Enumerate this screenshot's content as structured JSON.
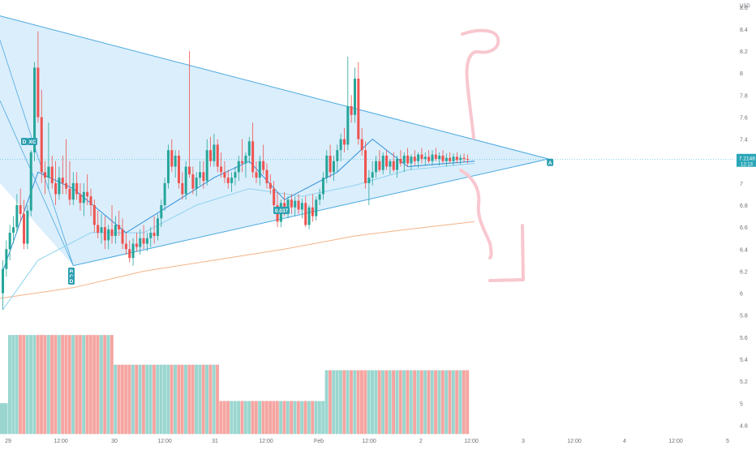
{
  "chart_data": {
    "type": "candlestick",
    "currency": "USD",
    "y_ticks": [
      "8.6",
      "8.4",
      "8.2",
      "8",
      "7.8",
      "7.6",
      "7.4",
      "7.2",
      "7",
      "6.8",
      "6.6",
      "6.4",
      "6.2",
      "6",
      "5.8",
      "5.6",
      "5.4",
      "5.2",
      "5",
      "4.8"
    ],
    "y_tick_values": [
      8.6,
      8.4,
      8.2,
      8.0,
      7.8,
      7.6,
      7.4,
      7.2,
      7.0,
      6.8,
      6.6,
      6.4,
      6.2,
      6.0,
      5.8,
      5.6,
      5.4,
      5.2,
      5.0,
      4.8
    ],
    "ylim": [
      4.7,
      8.65
    ],
    "x_ticks": [
      "29",
      "12:00",
      "30",
      "12:00",
      "31",
      "12:00",
      "Feb",
      "12:00",
      "2",
      "12:00",
      "3",
      "12:00",
      "4",
      "12:00",
      "5"
    ],
    "current_price": {
      "value": 7.2148,
      "label": "7.2148",
      "countdown": "12:13"
    },
    "volume_bands": [
      {
        "from_bar": 0,
        "to_bar": 1,
        "level": 5.0
      },
      {
        "from_bar": 2,
        "to_bar": 31,
        "level": 5.62
      },
      {
        "from_bar": 32,
        "to_bar": 61,
        "level": 5.35
      },
      {
        "from_bar": 62,
        "to_bar": 91,
        "level": 5.02
      },
      {
        "from_bar": 92,
        "to_bar": 134,
        "level": 5.3
      }
    ],
    "volume_base": 4.72,
    "candles": [
      [
        6.0,
        6.3,
        5.85,
        6.22
      ],
      [
        6.22,
        6.48,
        6.15,
        6.4
      ],
      [
        6.4,
        6.62,
        6.3,
        6.55
      ],
      [
        6.55,
        6.7,
        6.45,
        6.6
      ],
      [
        6.6,
        6.9,
        6.55,
        6.8
      ],
      [
        6.8,
        6.95,
        6.65,
        6.72
      ],
      [
        6.72,
        6.85,
        6.4,
        6.45
      ],
      [
        6.45,
        6.8,
        6.4,
        6.75
      ],
      [
        6.75,
        7.3,
        6.7,
        7.28
      ],
      [
        7.28,
        8.1,
        7.2,
        8.05
      ],
      [
        8.05,
        8.38,
        7.55,
        7.6
      ],
      [
        7.6,
        7.85,
        7.0,
        7.1
      ],
      [
        7.1,
        7.2,
        6.9,
        7.05
      ],
      [
        7.05,
        7.55,
        6.95,
        7.15
      ],
      [
        7.15,
        7.25,
        6.95,
        7.0
      ],
      [
        7.0,
        7.2,
        6.8,
        6.9
      ],
      [
        6.9,
        7.15,
        6.85,
        7.05
      ],
      [
        7.05,
        7.25,
        6.9,
        7.0
      ],
      [
        7.0,
        7.4,
        6.9,
        6.95
      ],
      [
        6.95,
        7.2,
        6.8,
        6.85
      ],
      [
        6.85,
        7.1,
        6.8,
        7.0
      ],
      [
        7.0,
        7.1,
        6.85,
        6.9
      ],
      [
        6.9,
        7.0,
        6.75,
        6.82
      ],
      [
        6.82,
        7.0,
        6.7,
        6.92
      ],
      [
        6.92,
        7.08,
        6.8,
        6.88
      ],
      [
        6.88,
        6.95,
        6.7,
        6.8
      ],
      [
        6.8,
        6.85,
        6.55,
        6.62
      ],
      [
        6.62,
        6.75,
        6.5,
        6.55
      ],
      [
        6.55,
        6.72,
        6.45,
        6.6
      ],
      [
        6.6,
        6.7,
        6.4,
        6.48
      ],
      [
        6.48,
        6.62,
        6.4,
        6.58
      ],
      [
        6.58,
        6.8,
        6.45,
        6.52
      ],
      [
        6.52,
        6.7,
        6.45,
        6.62
      ],
      [
        6.62,
        6.75,
        6.52,
        6.58
      ],
      [
        6.58,
        6.68,
        6.4,
        6.45
      ],
      [
        6.45,
        6.55,
        6.35,
        6.4
      ],
      [
        6.4,
        6.48,
        6.28,
        6.32
      ],
      [
        6.32,
        6.5,
        6.25,
        6.45
      ],
      [
        6.45,
        6.55,
        6.38,
        6.42
      ],
      [
        6.42,
        6.58,
        6.35,
        6.5
      ],
      [
        6.5,
        6.62,
        6.4,
        6.45
      ],
      [
        6.45,
        6.55,
        6.38,
        6.5
      ],
      [
        6.5,
        6.6,
        6.42,
        6.55
      ],
      [
        6.55,
        6.7,
        6.45,
        6.52
      ],
      [
        6.52,
        6.72,
        6.48,
        6.68
      ],
      [
        6.68,
        6.85,
        6.6,
        6.8
      ],
      [
        6.8,
        7.05,
        6.75,
        7.0
      ],
      [
        7.0,
        7.35,
        6.95,
        7.3
      ],
      [
        7.3,
        7.4,
        7.1,
        7.15
      ],
      [
        7.15,
        7.3,
        7.05,
        7.25
      ],
      [
        7.25,
        7.3,
        6.95,
        7.0
      ],
      [
        7.0,
        7.1,
        6.85,
        6.9
      ],
      [
        6.9,
        7.2,
        6.85,
        7.15
      ],
      [
        7.15,
        8.2,
        7.05,
        7.08
      ],
      [
        7.08,
        7.15,
        6.9,
        6.95
      ],
      [
        6.95,
        7.1,
        6.88,
        7.05
      ],
      [
        7.05,
        7.2,
        6.98,
        7.1
      ],
      [
        7.1,
        7.2,
        6.95,
        7.02
      ],
      [
        7.02,
        7.4,
        6.98,
        7.3
      ],
      [
        7.3,
        7.42,
        7.15,
        7.2
      ],
      [
        7.2,
        7.45,
        7.15,
        7.35
      ],
      [
        7.35,
        7.4,
        7.1,
        7.15
      ],
      [
        7.15,
        7.28,
        7.05,
        7.1
      ],
      [
        7.1,
        7.2,
        7.0,
        7.05
      ],
      [
        7.05,
        7.12,
        6.95,
        7.0
      ],
      [
        7.0,
        7.1,
        6.92,
        7.05
      ],
      [
        7.05,
        7.15,
        6.98,
        7.1
      ],
      [
        7.1,
        7.25,
        7.02,
        7.2
      ],
      [
        7.2,
        7.4,
        7.1,
        7.18
      ],
      [
        7.18,
        7.28,
        7.05,
        7.25
      ],
      [
        7.25,
        7.42,
        7.18,
        7.38
      ],
      [
        7.38,
        7.55,
        7.05,
        7.1
      ],
      [
        7.1,
        7.2,
        7.0,
        7.05
      ],
      [
        7.05,
        7.25,
        6.98,
        7.2
      ],
      [
        7.2,
        7.35,
        7.08,
        7.12
      ],
      [
        7.12,
        7.18,
        6.95,
        7.0
      ],
      [
        7.0,
        7.08,
        6.9,
        6.95
      ],
      [
        6.95,
        7.02,
        6.75,
        6.8
      ],
      [
        6.8,
        6.92,
        6.6,
        6.65
      ],
      [
        6.65,
        6.85,
        6.6,
        6.82
      ],
      [
        6.82,
        6.92,
        6.7,
        6.75
      ],
      [
        6.75,
        6.88,
        6.68,
        6.85
      ],
      [
        6.85,
        6.9,
        6.72,
        6.78
      ],
      [
        6.78,
        6.88,
        6.7,
        6.84
      ],
      [
        6.84,
        6.9,
        6.72,
        6.76
      ],
      [
        6.76,
        6.86,
        6.68,
        6.82
      ],
      [
        6.82,
        6.88,
        6.6,
        6.62
      ],
      [
        6.62,
        6.8,
        6.58,
        6.78
      ],
      [
        6.78,
        6.9,
        6.65,
        6.7
      ],
      [
        6.7,
        6.88,
        6.66,
        6.85
      ],
      [
        6.85,
        6.95,
        6.8,
        6.9
      ],
      [
        6.9,
        7.1,
        6.85,
        7.05
      ],
      [
        7.05,
        7.3,
        7.0,
        7.25
      ],
      [
        7.25,
        7.35,
        7.05,
        7.1
      ],
      [
        7.1,
        7.25,
        7.02,
        7.2
      ],
      [
        7.2,
        7.35,
        7.1,
        7.3
      ],
      [
        7.3,
        7.45,
        7.2,
        7.4
      ],
      [
        7.4,
        7.5,
        7.28,
        7.35
      ],
      [
        7.35,
        8.15,
        7.3,
        7.7
      ],
      [
        7.7,
        7.8,
        7.55,
        7.62
      ],
      [
        7.62,
        8.05,
        7.55,
        7.95
      ],
      [
        7.95,
        8.1,
        7.35,
        7.4
      ],
      [
        7.4,
        7.5,
        7.25,
        7.3
      ],
      [
        7.3,
        7.38,
        6.95,
        7.0
      ],
      [
        7.0,
        7.12,
        6.8,
        7.05
      ],
      [
        7.05,
        7.2,
        6.98,
        7.1
      ],
      [
        7.1,
        7.25,
        7.05,
        7.2
      ],
      [
        7.2,
        7.3,
        7.1,
        7.12
      ],
      [
        7.12,
        7.28,
        7.08,
        7.25
      ],
      [
        7.25,
        7.3,
        7.12,
        7.15
      ],
      [
        7.15,
        7.22,
        7.08,
        7.2
      ],
      [
        7.2,
        7.28,
        7.1,
        7.12
      ],
      [
        7.12,
        7.25,
        7.05,
        7.22
      ],
      [
        7.22,
        7.3,
        7.15,
        7.18
      ],
      [
        7.18,
        7.28,
        7.1,
        7.25
      ],
      [
        7.25,
        7.32,
        7.15,
        7.18
      ],
      [
        7.18,
        7.26,
        7.12,
        7.24
      ],
      [
        7.24,
        7.3,
        7.16,
        7.2
      ],
      [
        7.2,
        7.28,
        7.14,
        7.26
      ],
      [
        7.26,
        7.32,
        7.18,
        7.22
      ],
      [
        7.22,
        7.28,
        7.16,
        7.24
      ],
      [
        7.24,
        7.3,
        7.18,
        7.2
      ],
      [
        7.2,
        7.3,
        7.16,
        7.26
      ],
      [
        7.26,
        7.32,
        7.2,
        7.22
      ],
      [
        7.22,
        7.28,
        7.16,
        7.25
      ],
      [
        7.25,
        7.3,
        7.18,
        7.2
      ],
      [
        7.2,
        7.27,
        7.15,
        7.23
      ],
      [
        7.23,
        7.28,
        7.18,
        7.2
      ],
      [
        7.2,
        7.27,
        7.16,
        7.24
      ],
      [
        7.24,
        7.28,
        7.18,
        7.21
      ],
      [
        7.21,
        7.26,
        7.17,
        7.23
      ],
      [
        7.23,
        7.27,
        7.19,
        7.22
      ],
      [
        7.22,
        7.26,
        7.18,
        7.2148
      ]
    ],
    "triangle": {
      "top_left": 8.52,
      "apex_bar": 155,
      "apex_value": 7.22,
      "bottom_bar": 20,
      "bottom_value": 6.25,
      "left_bottom_value": 7.0
    },
    "ema_line": [
      [
        0,
        6.2
      ],
      [
        10,
        7.1
      ],
      [
        20,
        6.95
      ],
      [
        35,
        6.55
      ],
      [
        50,
        6.85
      ],
      [
        60,
        7.05
      ],
      [
        70,
        7.2
      ],
      [
        80,
        6.85
      ],
      [
        95,
        7.1
      ],
      [
        105,
        7.4
      ],
      [
        115,
        7.15
      ],
      [
        134,
        7.2
      ]
    ],
    "sma_line": [
      [
        0,
        5.85
      ],
      [
        10,
        6.3
      ],
      [
        25,
        6.55
      ],
      [
        40,
        6.55
      ],
      [
        55,
        6.8
      ],
      [
        70,
        6.95
      ],
      [
        85,
        6.88
      ],
      [
        100,
        6.98
      ],
      [
        115,
        7.12
      ],
      [
        134,
        7.18
      ]
    ],
    "long_ma_line": [
      [
        -8,
        5.92
      ],
      [
        20,
        6.05
      ],
      [
        40,
        6.2
      ],
      [
        60,
        6.3
      ],
      [
        80,
        6.4
      ],
      [
        100,
        6.52
      ],
      [
        115,
        6.58
      ],
      [
        134,
        6.65
      ]
    ],
    "annotations": {
      "label_a": "A",
      "label_b": "B",
      "label_c": "C",
      "label_d": "D",
      "label_xc": "XC",
      "label_ratio": "0.037"
    },
    "colors": {
      "up": "#26a69a",
      "down": "#ef5350",
      "volume_up": "#9ad6cf",
      "volume_down": "#f5a5a1",
      "pattern_fill": "#cfe8fb",
      "pattern_line": "#4ba9e0",
      "ema": "#2f8fd8",
      "sma": "#8fd3ef",
      "long_ma": "#f4b387",
      "price_line": "#4dc2d6",
      "handwriting": "#f8c7cf",
      "axis_text": "#6b6f76"
    }
  }
}
